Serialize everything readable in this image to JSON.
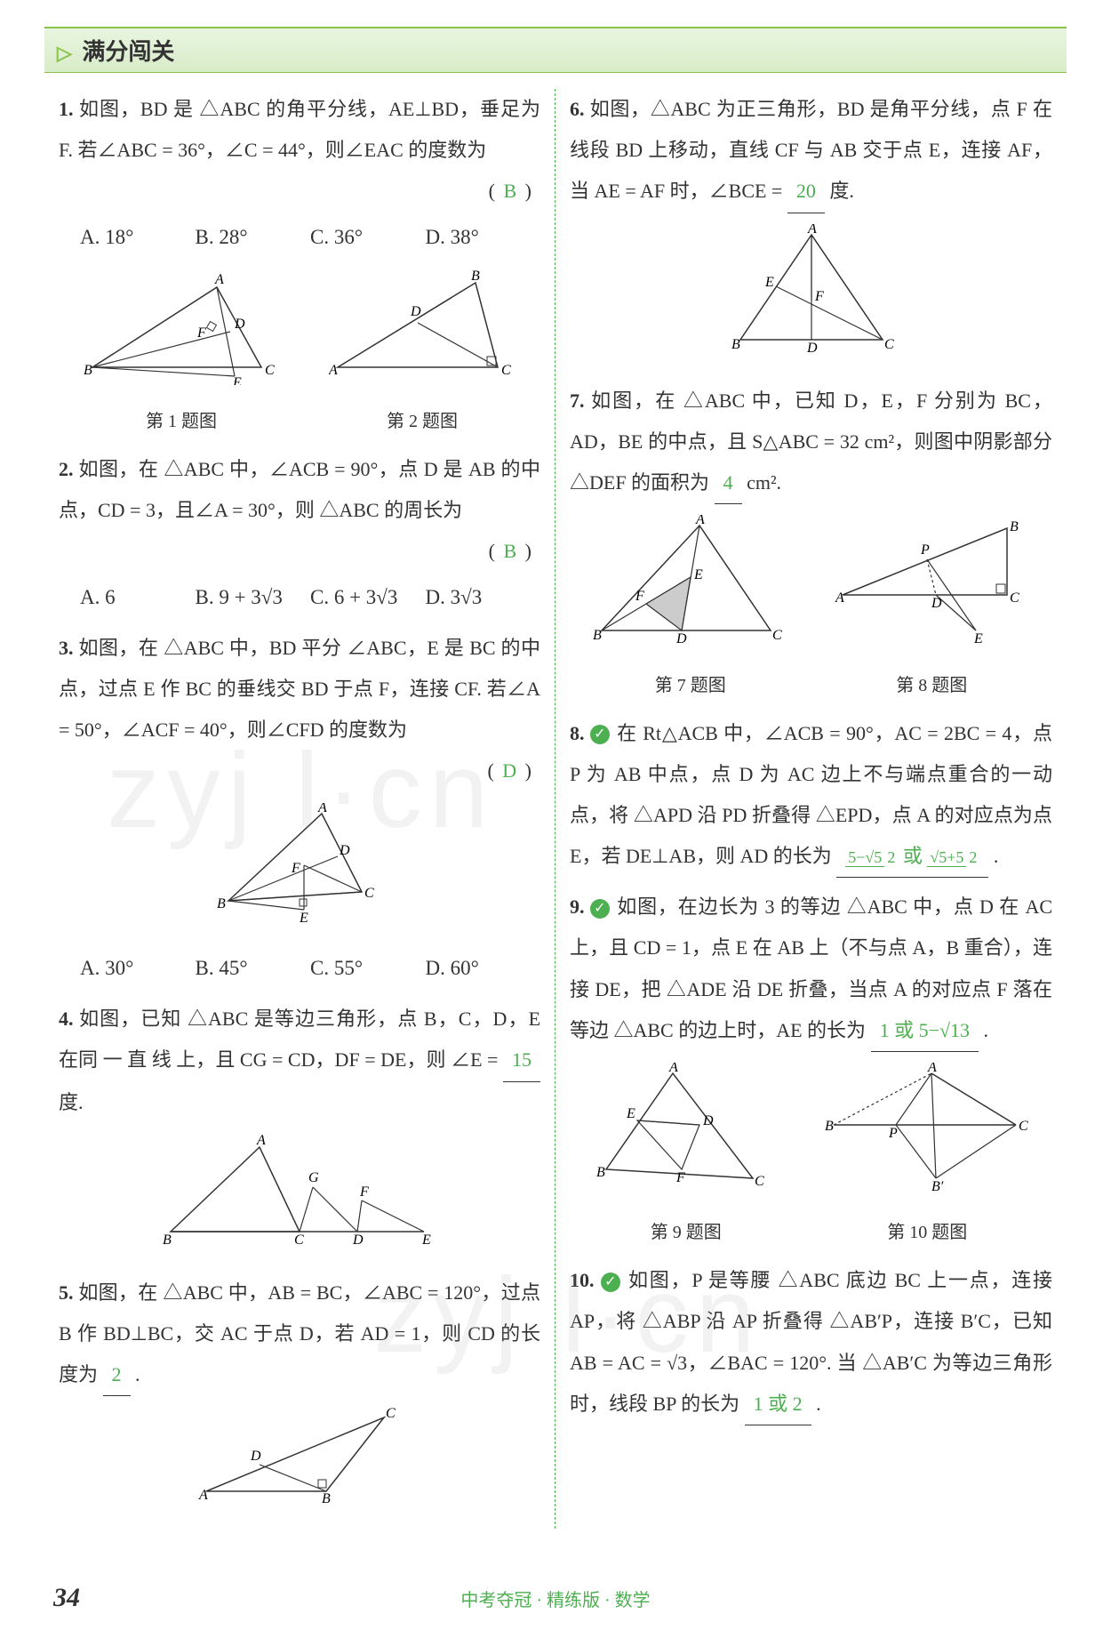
{
  "header": {
    "arrow": "▷",
    "title": "满分闯关"
  },
  "left": {
    "q1": {
      "num": "1.",
      "text": "如图，BD 是 △ABC 的角平分线，AE⊥BD，垂足为 F. 若∠ABC = 36°，∠C = 44°，则∠EAC 的度数为",
      "answer": "B",
      "options": {
        "A": "A. 18°",
        "B": "B. 28°",
        "C": "C. 36°",
        "D": "D. 38°"
      },
      "cap1": "第 1 题图",
      "cap2": "第 2 题图"
    },
    "q2": {
      "num": "2.",
      "text": "如图，在 △ABC 中，∠ACB = 90°，点 D 是 AB 的中点，CD = 3，且∠A = 30°，则 △ABC 的周长为",
      "answer": "B",
      "options": {
        "A": "A. 6",
        "B": "B. 9 + 3√3",
        "C": "C. 6 + 3√3",
        "D": "D. 3√3"
      }
    },
    "q3": {
      "num": "3.",
      "text": "如图，在 △ABC 中，BD 平分 ∠ABC，E 是 BC 的中点，过点 E 作 BC 的垂线交 BD 于点 F，连接 CF. 若∠A = 50°，∠ACF = 40°，则∠CFD 的度数为",
      "answer": "D",
      "options": {
        "A": "A. 30°",
        "B": "B. 45°",
        "C": "C. 55°",
        "D": "D. 60°"
      }
    },
    "q4": {
      "num": "4.",
      "text_a": "如图，已知 △ABC 是等边三角形，点 B，C，D，E 在同 一 直 线 上，且 CG = CD，DF = DE，则 ∠E =",
      "answer": "15",
      "text_b": "度."
    },
    "q5": {
      "num": "5.",
      "text_a": "如图，在 △ABC 中，AB = BC，∠ABC = 120°，过点 B 作 BD⊥BC，交 AC 于点 D，若 AD = 1，则 CD 的长度为",
      "answer": "2",
      "text_b": "."
    }
  },
  "right": {
    "q6": {
      "num": "6.",
      "text_a": "如图，△ABC 为正三角形，BD 是角平分线，点 F 在线段 BD 上移动，直线 CF 与 AB 交于点 E，连接 AF，当 AE = AF 时，∠BCE =",
      "answer": "20",
      "text_b": "度."
    },
    "q7": {
      "num": "7.",
      "text_a": "如图，在 △ABC 中，已知 D，E，F 分别为 BC，AD，BE 的中点，且 S△ABC = 32 cm²，则图中阴影部分 △DEF 的面积为",
      "answer": "4",
      "text_b": "cm².",
      "cap1": "第 7 题图",
      "cap2": "第 8 题图"
    },
    "q8": {
      "num": "8.",
      "text_a": "在 Rt△ACB 中，∠ACB = 90°，AC = 2BC = 4，点 P 为 AB 中点，点 D 为 AC 边上不与端点重合的一动点，将 △APD 沿 PD 折叠得 △EPD，点 A 的对应点为点 E，若 DE⊥AB，则 AD 的长为",
      "answer_html": "<span class='frac'><span class='top'>5−√5</span><span class='bot'>2</span></span> 或 <span class='frac'><span class='top'>√5+5</span><span class='bot'>2</span></span>",
      "text_b": "."
    },
    "q9": {
      "num": "9.",
      "text_a": "如图，在边长为 3 的等边 △ABC 中，点 D 在 AC 上，且 CD = 1，点 E 在 AB 上（不与点 A，B 重合），连接 DE，把 △ADE 沿 DE 折叠，当点 A 的对应点 F 落在等边 △ABC 的边上时，AE 的长为",
      "answer": "1 或 5−√13",
      "text_b": ".",
      "cap1": "第 9 题图",
      "cap2": "第 10 题图"
    },
    "q10": {
      "num": "10.",
      "text_a": "如图，P 是等腰 △ABC 底边 BC 上一点，连接 AP，将 △ABP 沿 AP 折叠得 △AB′P，连接 B′C，已知 AB = AC = √3，∠BAC = 120°. 当 △AB′C 为等边三角形时，线段 BP 的长为",
      "answer": "1 或 2",
      "text_b": "."
    }
  },
  "page_number": "34",
  "footer": "中考夺冠 · 精练版 · 数学",
  "watermark": "zyj l·cn",
  "colors": {
    "accent": "#4CAF50",
    "text": "#333333",
    "header_bg": "#e8f5e0"
  }
}
